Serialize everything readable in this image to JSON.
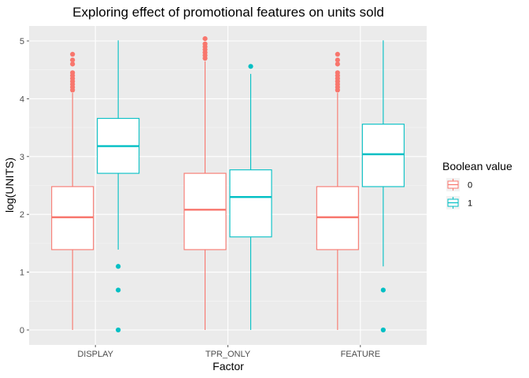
{
  "chart_data": {
    "type": "boxplot",
    "title": "Exploring effect of promotional features on units sold",
    "xlabel": "Factor",
    "ylabel": "log(UNITS)",
    "ylim": [
      -0.2,
      5.15
    ],
    "yticks": [
      0,
      1,
      2,
      3,
      4,
      5
    ],
    "categories": [
      "DISPLAY",
      "TPR_ONLY",
      "FEATURE"
    ],
    "grid": true,
    "legend": {
      "title": "Boolean value",
      "placement": "right",
      "entries": [
        {
          "label": "0",
          "color": "#F8766D"
        },
        {
          "label": "1",
          "color": "#00BFC4"
        }
      ]
    },
    "series": [
      {
        "name": "0",
        "color": "#F8766D",
        "boxes": [
          {
            "category": "DISPLAY",
            "min": 0.0,
            "q1": 1.39,
            "median": 1.95,
            "q3": 2.48,
            "max": 4.1,
            "outliers": [
              4.15,
              4.2,
              4.25,
              4.3,
              4.35,
              4.4,
              4.45,
              4.6,
              4.67,
              4.77
            ]
          },
          {
            "category": "TPR_ONLY",
            "min": 0.0,
            "q1": 1.39,
            "median": 2.08,
            "q3": 2.71,
            "max": 4.65,
            "outliers": [
              4.7,
              4.75,
              4.8,
              4.85,
              4.9,
              4.95,
              5.04
            ]
          },
          {
            "category": "FEATURE",
            "min": 0.0,
            "q1": 1.39,
            "median": 1.95,
            "q3": 2.48,
            "max": 4.1,
            "outliers": [
              4.15,
              4.2,
              4.25,
              4.3,
              4.35,
              4.4,
              4.45,
              4.6,
              4.67,
              4.77
            ]
          }
        ]
      },
      {
        "name": "1",
        "color": "#00BFC4",
        "boxes": [
          {
            "category": "DISPLAY",
            "min": 1.39,
            "q1": 2.71,
            "median": 3.18,
            "q3": 3.66,
            "max": 5.01,
            "outliers": [
              0.0,
              0.69,
              1.1
            ]
          },
          {
            "category": "TPR_ONLY",
            "min": 0.0,
            "q1": 1.61,
            "median": 2.3,
            "q3": 2.77,
            "max": 4.43,
            "outliers": [
              4.56
            ]
          },
          {
            "category": "FEATURE",
            "min": 1.1,
            "q1": 2.48,
            "median": 3.04,
            "q3": 3.56,
            "max": 5.01,
            "outliers": [
              0.0,
              0.69
            ]
          }
        ]
      }
    ]
  }
}
